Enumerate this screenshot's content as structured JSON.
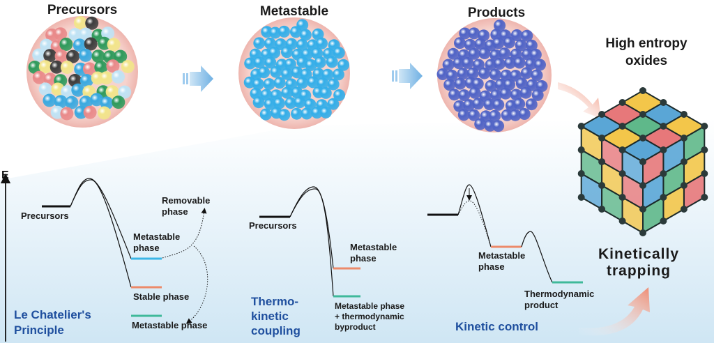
{
  "titles": {
    "precursors": "Precursors",
    "metastable": "Metastable",
    "products": "Products",
    "heo_line1": "High entropy",
    "heo_line2": "oxides"
  },
  "axis": {
    "label": "E"
  },
  "panel1": {
    "precursors": "Precursors",
    "removable_1": "Removable",
    "removable_2": "phase",
    "meta_1": "Metastable",
    "meta_2": "phase",
    "stable": "Stable phase",
    "meta_bottom": "Metastable phase",
    "title_1": "Le Chatelier's",
    "title_2": "Principle"
  },
  "panel2": {
    "precursors": "Precursors",
    "meta_1": "Metastable",
    "meta_2": "phase",
    "byprod_1": "Metastable phase",
    "byprod_2": "+ thermodynamic",
    "byprod_3": "byproduct",
    "title_1": "Thermo-",
    "title_2": "kinetic",
    "title_3": "coupling"
  },
  "panel3": {
    "meta_1": "Metastable",
    "meta_2": "phase",
    "thermo_1": "Thermodynamic",
    "thermo_2": "product",
    "title": "Kinetic control"
  },
  "kinetic": {
    "line1": "Kinetically",
    "line2": "trapping"
  },
  "colors": {
    "title_blue": "#1f4f9e",
    "level_blue": "#3bb6e6",
    "level_red": "#ec8a6a",
    "level_green": "#3fb99a",
    "circle_bg": "#f3c6c0",
    "precursor_spheres": [
      "#3aa9e0",
      "#e98a8a",
      "#3d3d3d",
      "#2e9a5b",
      "#f2e58a",
      "#bfe3f5"
    ],
    "metastable_sphere": "#33aee9",
    "product_sphere": "#4f63c6",
    "cube_faces": [
      "#e7787a",
      "#f3c64a",
      "#5fb88a",
      "#5aa6d6"
    ]
  }
}
